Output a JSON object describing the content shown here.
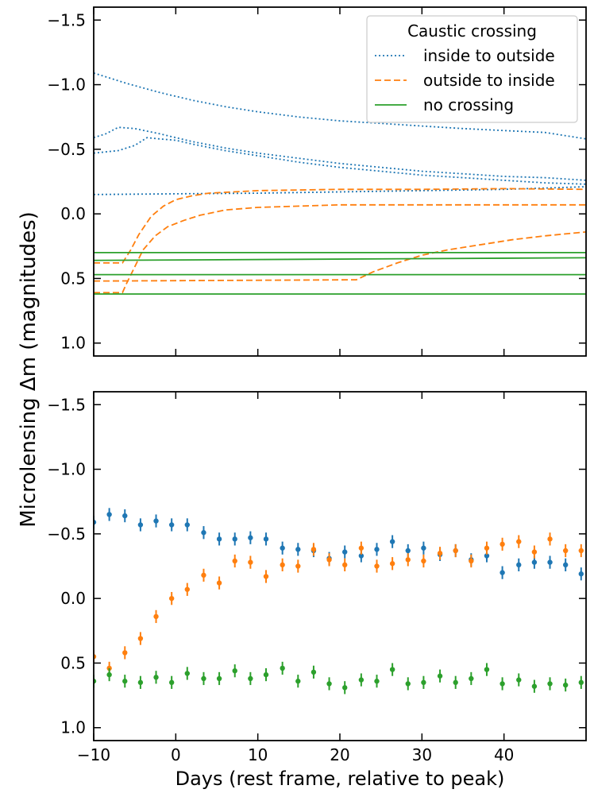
{
  "figure": {
    "ylabel": "Microlensing Δm (magnitudes)",
    "xlabel": "Days (rest frame, relative to peak)"
  },
  "colors": {
    "blue": "#1f77b4",
    "orange": "#ff7f0e",
    "green": "#2ca02c"
  },
  "chart_data": [
    {
      "type": "line",
      "panel": "top",
      "xlim": [
        -10,
        50
      ],
      "ylim": [
        1.1,
        -1.6
      ],
      "y_inverted": true,
      "xticks": [
        -10,
        0,
        10,
        20,
        30,
        40
      ],
      "yticks": [
        -1.5,
        -1.0,
        -0.5,
        0.0,
        0.5,
        1.0
      ],
      "ytick_labels": [
        "−1.5",
        "−1.0",
        "−0.5",
        "0.0",
        "0.5",
        "1.0"
      ],
      "legend": {
        "title": "Caustic crossing",
        "placement": "top-right",
        "entries": [
          {
            "label": "inside to outside",
            "color": "blue",
            "style": "dotted"
          },
          {
            "label": "outside to inside",
            "color": "orange",
            "style": "dashed"
          },
          {
            "label": "no crossing",
            "color": "green",
            "style": "solid"
          }
        ]
      },
      "series": [
        {
          "name": "inside to outside 1",
          "group": "inside to outside",
          "color": "blue",
          "style": "dotted",
          "x": [
            -10,
            -6,
            -2,
            2,
            6,
            10,
            15,
            20,
            25,
            30,
            35,
            40,
            45,
            50
          ],
          "y": [
            -1.09,
            -1.01,
            -0.94,
            -0.88,
            -0.83,
            -0.79,
            -0.75,
            -0.72,
            -0.7,
            -0.68,
            -0.66,
            -0.645,
            -0.63,
            -0.58
          ]
        },
        {
          "name": "inside to outside 2",
          "group": "inside to outside",
          "color": "blue",
          "style": "dotted",
          "x": [
            -10,
            -8.5,
            -7,
            -5,
            -2,
            2,
            6,
            10,
            15,
            20,
            25,
            30,
            35,
            40,
            45,
            50
          ],
          "y": [
            -0.59,
            -0.62,
            -0.67,
            -0.66,
            -0.62,
            -0.56,
            -0.51,
            -0.47,
            -0.43,
            -0.39,
            -0.36,
            -0.33,
            -0.31,
            -0.29,
            -0.28,
            -0.26
          ]
        },
        {
          "name": "inside to outside 3",
          "group": "inside to outside",
          "color": "blue",
          "style": "dotted",
          "x": [
            -10,
            -7,
            -5,
            -3.5,
            -2,
            0,
            2,
            6,
            10,
            15,
            20,
            25,
            30,
            35,
            40,
            45,
            50
          ],
          "y": [
            -0.47,
            -0.49,
            -0.53,
            -0.59,
            -0.58,
            -0.57,
            -0.54,
            -0.49,
            -0.45,
            -0.4,
            -0.36,
            -0.33,
            -0.3,
            -0.28,
            -0.26,
            -0.24,
            -0.23
          ]
        },
        {
          "name": "inside to outside 4",
          "group": "inside to outside",
          "color": "blue",
          "style": "dotted",
          "x": [
            -10,
            0,
            10,
            20,
            30,
            40,
            50
          ],
          "y": [
            -0.15,
            -0.155,
            -0.16,
            -0.17,
            -0.18,
            -0.19,
            -0.21
          ]
        },
        {
          "name": "outside to inside 1",
          "group": "outside to inside",
          "color": "orange",
          "style": "dashed",
          "x": [
            -10,
            -6.5,
            -5.5,
            -4.5,
            -3,
            -1.5,
            0,
            2,
            4,
            7,
            10,
            15,
            20,
            30,
            40,
            50
          ],
          "y": [
            0.38,
            0.38,
            0.28,
            0.16,
            0.02,
            -0.06,
            -0.11,
            -0.14,
            -0.16,
            -0.17,
            -0.18,
            -0.185,
            -0.19,
            -0.19,
            -0.195,
            -0.19
          ]
        },
        {
          "name": "outside to inside 2",
          "group": "outside to inside",
          "color": "orange",
          "style": "dashed",
          "x": [
            -10,
            -6.5,
            -6,
            -5,
            -4,
            -2.5,
            -1,
            1,
            3,
            6,
            10,
            15,
            20,
            30,
            40,
            50
          ],
          "y": [
            0.61,
            0.61,
            0.54,
            0.41,
            0.28,
            0.17,
            0.1,
            0.05,
            0.01,
            -0.03,
            -0.05,
            -0.06,
            -0.07,
            -0.07,
            -0.07,
            -0.07
          ]
        },
        {
          "name": "outside to inside 3",
          "group": "outside to inside",
          "color": "orange",
          "style": "dashed",
          "x": [
            -10,
            22,
            24,
            27,
            30,
            33,
            37,
            41,
            45,
            50
          ],
          "y": [
            0.52,
            0.51,
            0.45,
            0.38,
            0.32,
            0.28,
            0.24,
            0.2,
            0.17,
            0.14
          ]
        },
        {
          "name": "no crossing 1",
          "group": "no crossing",
          "color": "green",
          "style": "solid",
          "x": [
            -10,
            50
          ],
          "y": [
            0.3,
            0.3
          ]
        },
        {
          "name": "no crossing 2",
          "group": "no crossing",
          "color": "green",
          "style": "solid",
          "x": [
            -10,
            50
          ],
          "y": [
            0.36,
            0.34
          ]
        },
        {
          "name": "no crossing 3",
          "group": "no crossing",
          "color": "green",
          "style": "solid",
          "x": [
            -10,
            50
          ],
          "y": [
            0.47,
            0.47
          ]
        },
        {
          "name": "no crossing 4",
          "group": "no crossing",
          "color": "green",
          "style": "solid",
          "x": [
            -10,
            50
          ],
          "y": [
            0.62,
            0.62
          ]
        }
      ]
    },
    {
      "type": "scatter",
      "panel": "bottom",
      "xlim": [
        -10,
        50
      ],
      "ylim": [
        1.1,
        -1.6
      ],
      "y_inverted": true,
      "xticks": [
        -10,
        0,
        10,
        20,
        30,
        40
      ],
      "xtick_labels": [
        "−10",
        "0",
        "10",
        "20",
        "30",
        "40"
      ],
      "yticks": [
        -1.5,
        -1.0,
        -0.5,
        0.0,
        0.5,
        1.0
      ],
      "ytick_labels": [
        "−1.5",
        "−1.0",
        "−0.5",
        "0.0",
        "0.5",
        "1.0"
      ],
      "error": 0.05,
      "series": [
        {
          "name": "inside to outside",
          "color": "blue",
          "x": [
            -10,
            -8.1,
            -6.2,
            -4.3,
            -2.4,
            -0.5,
            1.4,
            3.4,
            5.3,
            7.2,
            9.1,
            11.0,
            13.0,
            14.9,
            16.8,
            18.7,
            20.6,
            22.6,
            24.5,
            26.4,
            28.3,
            30.2,
            32.2,
            34.1,
            36.0,
            37.9,
            39.8,
            41.8,
            43.7,
            45.6,
            47.5,
            49.4
          ],
          "y": [
            -0.59,
            -0.65,
            -0.64,
            -0.57,
            -0.6,
            -0.57,
            -0.57,
            -0.51,
            -0.46,
            -0.46,
            -0.47,
            -0.46,
            -0.39,
            -0.38,
            -0.37,
            -0.31,
            -0.36,
            -0.33,
            -0.38,
            -0.44,
            -0.37,
            -0.39,
            -0.34,
            -0.37,
            -0.3,
            -0.33,
            -0.2,
            -0.26,
            -0.28,
            -0.28,
            -0.26,
            -0.19
          ]
        },
        {
          "name": "outside to inside",
          "color": "orange",
          "x": [
            -10,
            -8.1,
            -6.2,
            -4.3,
            -2.4,
            -0.5,
            1.4,
            3.4,
            5.3,
            7.2,
            9.1,
            11.0,
            13.0,
            14.9,
            16.8,
            18.7,
            20.6,
            22.6,
            24.5,
            26.4,
            28.3,
            30.2,
            32.2,
            34.1,
            36.0,
            37.9,
            39.8,
            41.8,
            43.7,
            45.6,
            47.5,
            49.4
          ],
          "y": [
            0.45,
            0.54,
            0.42,
            0.31,
            0.14,
            0.0,
            -0.07,
            -0.18,
            -0.12,
            -0.29,
            -0.28,
            -0.17,
            -0.26,
            -0.25,
            -0.38,
            -0.3,
            -0.26,
            -0.39,
            -0.25,
            -0.27,
            -0.3,
            -0.29,
            -0.35,
            -0.37,
            -0.29,
            -0.39,
            -0.42,
            -0.44,
            -0.36,
            -0.46,
            -0.37,
            -0.37
          ]
        },
        {
          "name": "no crossing",
          "color": "green",
          "x": [
            -10,
            -8.1,
            -6.2,
            -4.3,
            -2.4,
            -0.5,
            1.4,
            3.4,
            5.3,
            7.2,
            9.1,
            11.0,
            13.0,
            14.9,
            16.8,
            18.7,
            20.6,
            22.6,
            24.5,
            26.4,
            28.3,
            30.2,
            32.2,
            34.1,
            36.0,
            37.9,
            39.8,
            41.8,
            43.7,
            45.6,
            47.5,
            49.4
          ],
          "y": [
            0.64,
            0.59,
            0.64,
            0.65,
            0.61,
            0.65,
            0.58,
            0.62,
            0.62,
            0.56,
            0.62,
            0.59,
            0.54,
            0.64,
            0.57,
            0.66,
            0.69,
            0.63,
            0.64,
            0.55,
            0.66,
            0.65,
            0.6,
            0.65,
            0.62,
            0.55,
            0.66,
            0.63,
            0.68,
            0.66,
            0.67,
            0.65
          ]
        }
      ]
    }
  ]
}
